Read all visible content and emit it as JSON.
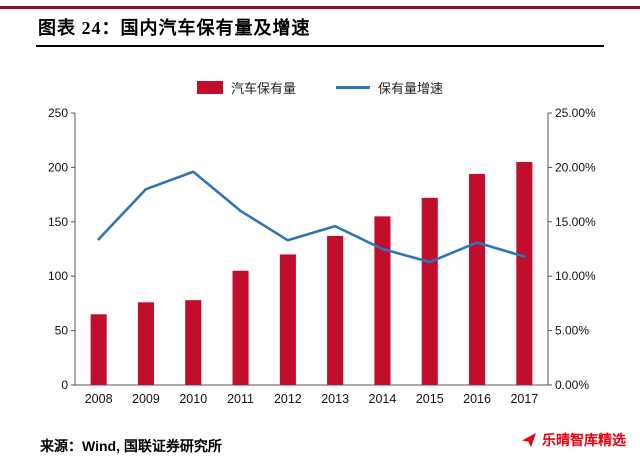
{
  "chart_data": {
    "type": "bar+line",
    "title": "图表 24：国内汽车保有量及增速",
    "categories": [
      "2008",
      "2009",
      "2010",
      "2011",
      "2012",
      "2013",
      "2014",
      "2015",
      "2016",
      "2017"
    ],
    "series": [
      {
        "name": "汽车保有量",
        "type": "bar",
        "axis": "left",
        "color": "#c00e2c",
        "values": [
          65,
          76,
          78,
          105,
          120,
          137,
          155,
          172,
          194,
          205
        ]
      },
      {
        "name": "保有量增速",
        "type": "line",
        "axis": "right",
        "color": "#2e75b6",
        "values": [
          13.4,
          18.0,
          19.6,
          16.0,
          13.3,
          14.6,
          12.5,
          11.3,
          13.1,
          11.8
        ]
      }
    ],
    "left_axis": {
      "min": 0,
      "max": 250,
      "step": 50,
      "ticks": [
        "0",
        "50",
        "100",
        "150",
        "200",
        "250"
      ]
    },
    "right_axis": {
      "min": 0,
      "max": 25,
      "step": 5,
      "ticks": [
        "0.00%",
        "5.00%",
        "10.00%",
        "15.00%",
        "20.00%",
        "25.00%"
      ]
    },
    "grid": false,
    "legend_position": "top",
    "xlabel": "",
    "ylabel": ""
  },
  "footer": {
    "source": "来源：Wind, 国联证券研究所"
  },
  "watermark": {
    "text": "乐晴智库精选",
    "color": "#e60012"
  },
  "colors": {
    "top_rule": "#8a1420",
    "axis": "#555555",
    "tick_label": "#111111"
  }
}
